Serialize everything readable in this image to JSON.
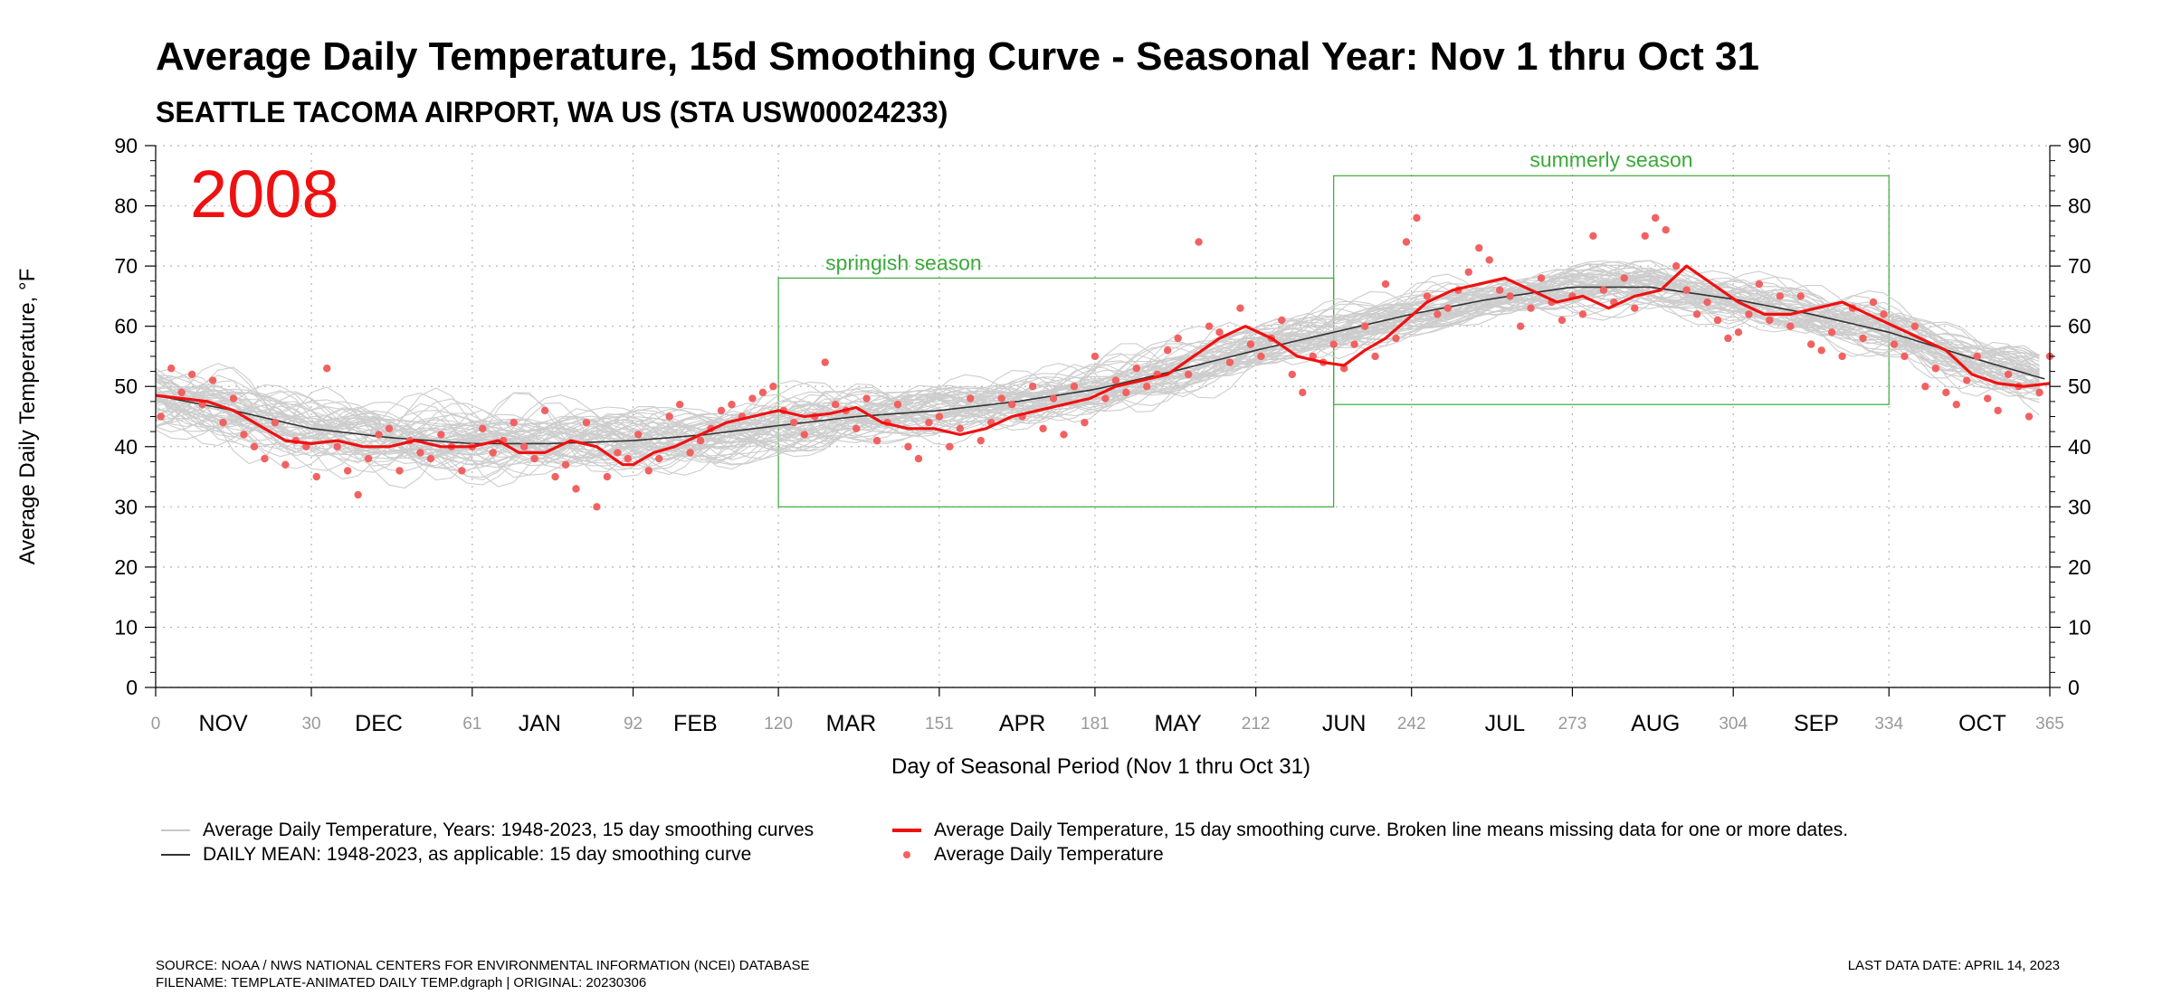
{
  "chart_data": {
    "type": "line",
    "title": "Average Daily Temperature, 15d Smoothing Curve - Seasonal Year: Nov 1 thru Oct 31",
    "subtitle": "SEATTLE TACOMA AIRPORT, WA US (STA USW00024233)",
    "year_label": "2008",
    "ylabel": "Average Daily Temperature, °F",
    "xlabel": "Day of Seasonal Period (Nov 1 thru Oct 31)",
    "xlim": [
      0,
      365
    ],
    "ylim": [
      0,
      90
    ],
    "y_ticks": [
      0,
      10,
      20,
      30,
      40,
      50,
      60,
      70,
      80,
      90
    ],
    "x_day_ticks": [
      0,
      30,
      61,
      92,
      120,
      151,
      181,
      212,
      242,
      273,
      304,
      334,
      365
    ],
    "month_labels": [
      {
        "label": "NOV",
        "day": 13
      },
      {
        "label": "DEC",
        "day": 43
      },
      {
        "label": "JAN",
        "day": 74
      },
      {
        "label": "FEB",
        "day": 104
      },
      {
        "label": "MAR",
        "day": 134
      },
      {
        "label": "APR",
        "day": 167
      },
      {
        "label": "MAY",
        "day": 197
      },
      {
        "label": "JUN",
        "day": 229
      },
      {
        "label": "JUL",
        "day": 260
      },
      {
        "label": "AUG",
        "day": 289
      },
      {
        "label": "SEP",
        "day": 320
      },
      {
        "label": "OCT",
        "day": 352
      }
    ],
    "grid": true,
    "seasons": [
      {
        "label": "springish season",
        "x_start": 120,
        "x_end": 227,
        "y_low": 30,
        "y_high": 68
      },
      {
        "label": "summerly season",
        "x_start": 227,
        "x_end": 334,
        "y_low": 47,
        "y_high": 85
      }
    ],
    "colors": {
      "historical": "#c8c8c8",
      "mean": "#333333",
      "current": "#ee1111",
      "dots": "#f26161",
      "season": "#3aa93a",
      "grid": "#b4b4b4"
    },
    "daily_mean_curve": {
      "x": [
        0,
        15,
        30,
        45,
        61,
        76,
        92,
        106,
        120,
        135,
        151,
        166,
        181,
        196,
        212,
        227,
        242,
        257,
        273,
        288,
        304,
        319,
        334,
        349,
        365
      ],
      "y": [
        48.5,
        46,
        43,
        41.5,
        40.5,
        40.5,
        41,
        42,
        43.5,
        45,
        46,
        47.5,
        49.5,
        52.5,
        56,
        59,
        62,
        64.5,
        66.5,
        66.5,
        64.5,
        62,
        59,
        55,
        51
      ]
    },
    "current_year_curve": {
      "x": [
        0,
        5,
        10,
        15,
        20,
        25,
        30,
        35,
        40,
        45,
        50,
        55,
        61,
        66,
        70,
        75,
        80,
        85,
        90,
        92,
        96,
        100,
        105,
        110,
        115,
        120,
        125,
        130,
        135,
        140,
        145,
        150,
        155,
        160,
        165,
        170,
        175,
        180,
        185,
        190,
        195,
        200,
        205,
        210,
        215,
        220,
        225,
        229,
        233,
        237,
        241,
        245,
        250,
        255,
        260,
        265,
        270,
        275,
        280,
        285,
        290,
        295,
        300,
        305,
        310,
        315,
        320,
        325,
        330,
        335,
        340,
        345,
        350,
        355,
        360,
        365
      ],
      "y": [
        48.5,
        48,
        47.5,
        46,
        43.5,
        41,
        40.5,
        41,
        40,
        40,
        41,
        40,
        40,
        41,
        39,
        39,
        41,
        40,
        37,
        37,
        39,
        40,
        42,
        44,
        45,
        46,
        45,
        45.5,
        46.5,
        44,
        43,
        43,
        42,
        43,
        45,
        46,
        47,
        48,
        50,
        51,
        52,
        55,
        58,
        60,
        58,
        55,
        54,
        53.5,
        56,
        58,
        61,
        64,
        66,
        67,
        68,
        66,
        64,
        65,
        63,
        65,
        66,
        70,
        67,
        64,
        62,
        62,
        63,
        64,
        62,
        60,
        58,
        56,
        52,
        50.5,
        50,
        50.5
      ]
    },
    "daily_points": {
      "x": [
        1,
        3,
        5,
        7,
        9,
        11,
        13,
        15,
        17,
        19,
        21,
        23,
        25,
        27,
        29,
        31,
        33,
        35,
        37,
        39,
        41,
        43,
        45,
        47,
        49,
        51,
        53,
        55,
        57,
        59,
        61,
        63,
        65,
        67,
        69,
        71,
        73,
        75,
        77,
        79,
        81,
        83,
        85,
        87,
        89,
        91,
        93,
        95,
        97,
        99,
        101,
        103,
        105,
        107,
        109,
        111,
        113,
        115,
        117,
        119,
        121,
        123,
        125,
        127,
        129,
        131,
        133,
        135,
        137,
        139,
        141,
        143,
        145,
        147,
        149,
        151,
        153,
        155,
        157,
        159,
        161,
        163,
        165,
        167,
        169,
        171,
        173,
        175,
        177,
        179,
        181,
        183,
        185,
        187,
        189,
        191,
        193,
        195,
        197,
        199,
        201,
        203,
        205,
        207,
        209,
        211,
        213,
        215,
        217,
        219,
        221,
        223,
        225,
        227,
        229,
        231,
        233,
        235,
        237,
        239,
        241,
        243,
        245,
        247,
        249,
        251,
        253,
        255,
        257,
        259,
        261,
        263,
        265,
        267,
        269,
        271,
        273,
        275,
        277,
        279,
        281,
        283,
        285,
        287,
        289,
        291,
        293,
        295,
        297,
        299,
        301,
        303,
        305,
        307,
        309,
        311,
        313,
        315,
        317,
        319,
        321,
        323,
        325,
        327,
        329,
        331,
        333,
        335,
        337,
        339,
        341,
        343,
        345,
        347,
        349,
        351,
        353,
        355,
        357,
        359,
        361,
        363,
        365
      ],
      "y": [
        45,
        53,
        49,
        52,
        47,
        51,
        44,
        48,
        42,
        40,
        38,
        44,
        37,
        41,
        40,
        35,
        53,
        40,
        36,
        32,
        38,
        42,
        43,
        36,
        41,
        39,
        38,
        42,
        40,
        36,
        40,
        43,
        39,
        41,
        44,
        40,
        38,
        46,
        35,
        37,
        33,
        44,
        30,
        35,
        39,
        38,
        42,
        36,
        38,
        45,
        47,
        39,
        41,
        43,
        46,
        47,
        45,
        48,
        49,
        50,
        46,
        44,
        42,
        45,
        54,
        47,
        46,
        43,
        48,
        41,
        44,
        47,
        40,
        38,
        44,
        45,
        40,
        43,
        48,
        41,
        44,
        48,
        47,
        45,
        50,
        43,
        48,
        42,
        50,
        44,
        55,
        48,
        51,
        49,
        53,
        50,
        52,
        56,
        58,
        52,
        74,
        60,
        59,
        54,
        63,
        57,
        55,
        58,
        61,
        52,
        49,
        55,
        54,
        57,
        53,
        57,
        60,
        55,
        67,
        58,
        74,
        78,
        65,
        62,
        63,
        66,
        69,
        73,
        71,
        66,
        65,
        60,
        63,
        68,
        64,
        61,
        65,
        62,
        75,
        66,
        64,
        68,
        63,
        75,
        78,
        76,
        70,
        66,
        62,
        64,
        61,
        58,
        59,
        62,
        67,
        61,
        65,
        60,
        65,
        57,
        56,
        59,
        55,
        63,
        58,
        64,
        62,
        57,
        55,
        60,
        50,
        53,
        49,
        47,
        51,
        55,
        48,
        46,
        52,
        50,
        45,
        49,
        55
      ]
    },
    "legend": [
      {
        "label": "Average Daily Temperature, Years: 1948-2023, 15 day smoothing curves",
        "kind": "line-light"
      },
      {
        "label": "Average Daily Temperature, 15 day smoothing curve. Broken line means missing data for one or more dates.",
        "kind": "line-red"
      },
      {
        "label": "DAILY MEAN: 1948-2023, as applicable: 15 day smoothing curve",
        "kind": "line-dark"
      },
      {
        "label": "Average Daily Temperature",
        "kind": "dot"
      }
    ]
  },
  "footer": {
    "source": "SOURCE: NOAA / NWS NATIONAL CENTERS FOR ENVIRONMENTAL INFORMATION (NCEI) DATABASE",
    "filename": "FILENAME: TEMPLATE-ANIMATED DAILY TEMP.dgraph | ORIGINAL: 20230306",
    "last_data": "LAST DATA DATE: APRIL 14, 2023"
  }
}
